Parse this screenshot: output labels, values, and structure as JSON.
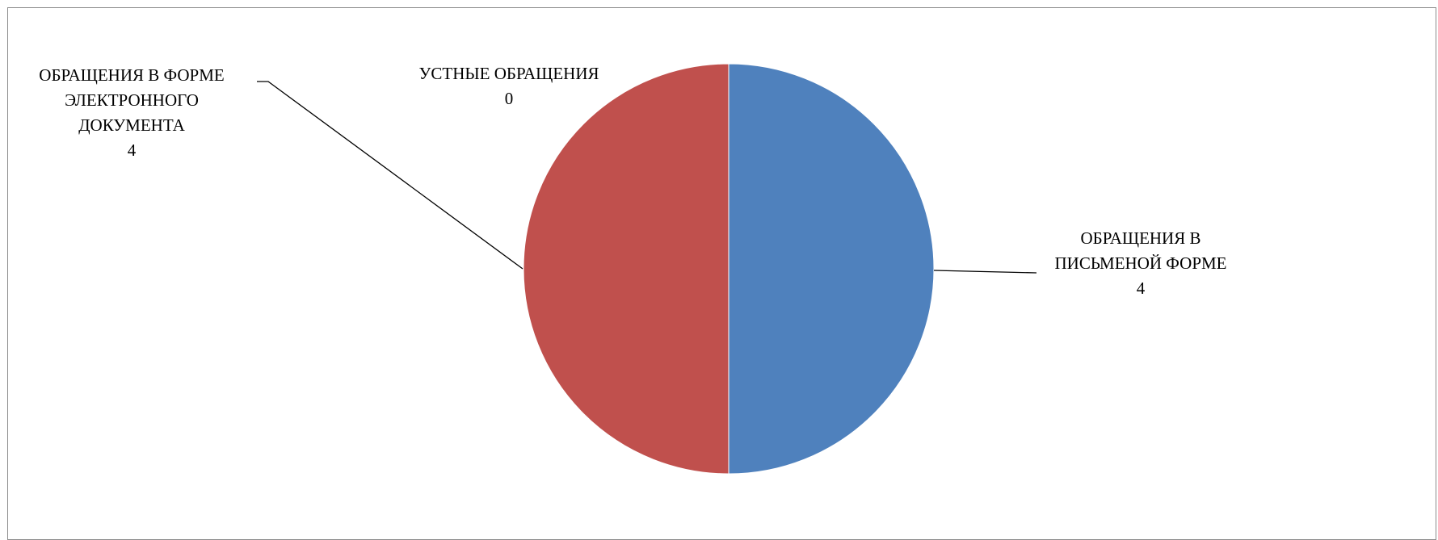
{
  "chart_data": {
    "type": "pie",
    "title": "",
    "slices": [
      {
        "category": "ОБРАЩЕНИЯ В ПИСЬМЕНОЙ ФОРМЕ",
        "label_lines": [
          "ОБРАЩЕНИЯ В",
          "ПИСЬМЕНОЙ ФОРМЕ"
        ],
        "value": 4,
        "value_label": "4",
        "color": "#4f81bd"
      },
      {
        "category": "УСТНЫЕ ОБРАЩЕНИЯ",
        "label_lines": [
          "УСТНЫЕ ОБРАЩЕНИЯ"
        ],
        "value": 0,
        "value_label": "0",
        "color": "#9bbb59"
      },
      {
        "category": "ОБРАЩЕНИЯ В ФОРМЕ ЭЛЕКТРОННОГО ДОКУМЕНТА",
        "label_lines": [
          "ОБРАЩЕНИЯ В ФОРМЕ",
          "ЭЛЕКТРОННОГО",
          "ДОКУМЕНТА"
        ],
        "value": 4,
        "value_label": "4",
        "color": "#c0504d"
      }
    ],
    "start_angle": "12 o'clock, clockwise",
    "legend": "none"
  }
}
